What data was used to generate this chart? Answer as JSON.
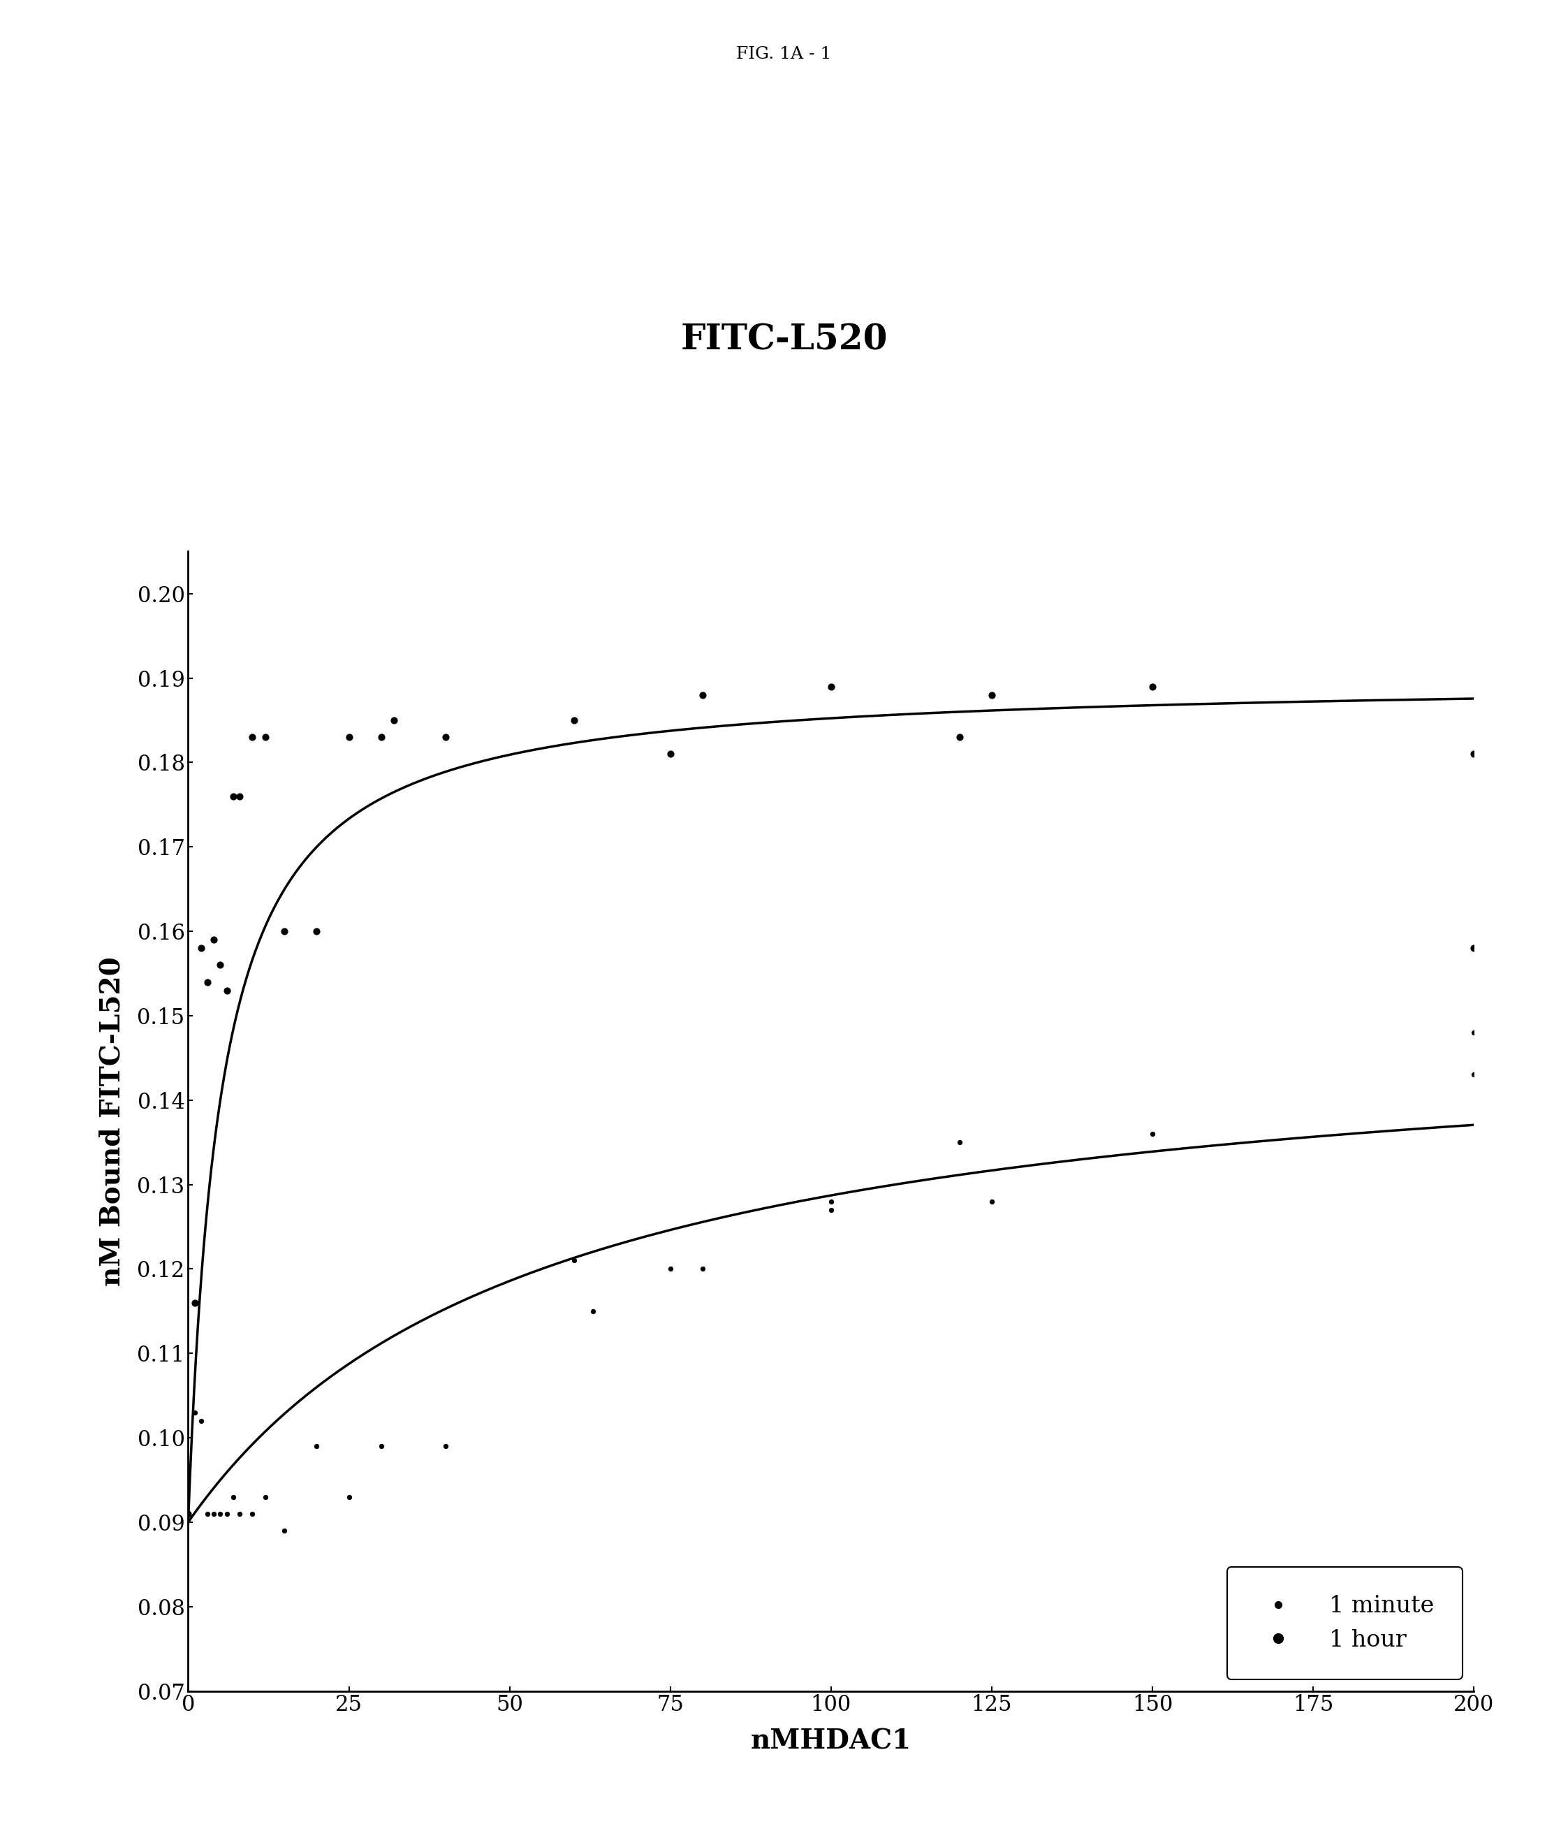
{
  "title_fig": "FIG. 1A - 1",
  "title_chart": "FITC-L520",
  "xlabel": "nMHDAC1",
  "ylabel": "nM Bound FITC-L520",
  "xlim": [
    0,
    200
  ],
  "ylim": [
    0.07,
    0.205
  ],
  "yticks": [
    0.07,
    0.08,
    0.09,
    0.1,
    0.11,
    0.12,
    0.13,
    0.14,
    0.15,
    0.16,
    0.17,
    0.18,
    0.19,
    0.2
  ],
  "xticks": [
    0,
    25,
    50,
    75,
    100,
    125,
    150,
    175,
    200
  ],
  "background_color": "#ffffff",
  "line_color": "#000000",
  "dot_color": "#000000",
  "scatter_1min_x": [
    0,
    1,
    2,
    3,
    4,
    5,
    6,
    7,
    8,
    10,
    12,
    15,
    20,
    25,
    30,
    40,
    60,
    63,
    75,
    80,
    100,
    100,
    120,
    125,
    150,
    200,
    200
  ],
  "scatter_1min_y": [
    0.091,
    0.103,
    0.102,
    0.091,
    0.091,
    0.091,
    0.091,
    0.093,
    0.091,
    0.091,
    0.093,
    0.089,
    0.099,
    0.093,
    0.099,
    0.099,
    0.121,
    0.115,
    0.12,
    0.12,
    0.127,
    0.128,
    0.135,
    0.128,
    0.136,
    0.148,
    0.143
  ],
  "scatter_1hr_x": [
    0,
    1,
    2,
    3,
    4,
    5,
    6,
    7,
    8,
    10,
    12,
    15,
    20,
    25,
    30,
    32,
    40,
    60,
    75,
    80,
    100,
    120,
    125,
    150,
    200,
    200
  ],
  "scatter_1hr_y": [
    0.091,
    0.116,
    0.158,
    0.154,
    0.159,
    0.156,
    0.153,
    0.176,
    0.176,
    0.183,
    0.183,
    0.16,
    0.16,
    0.183,
    0.183,
    0.185,
    0.183,
    0.185,
    0.181,
    0.188,
    0.189,
    0.183,
    0.188,
    0.189,
    0.181,
    0.158
  ],
  "curve_1min_Bmax": 0.06,
  "curve_1min_Kd": 55,
  "curve_1min_B0": 0.09,
  "curve_1hr_Bmax": 0.1,
  "curve_1hr_Kd": 5,
  "curve_1hr_B0": 0.09,
  "legend_label_1min": "1 minute",
  "legend_label_1hr": "1 hour",
  "title_fontsize": 36,
  "fig_title_fontsize": 18,
  "axis_label_fontsize": 28,
  "tick_fontsize": 22,
  "legend_fontsize": 24
}
